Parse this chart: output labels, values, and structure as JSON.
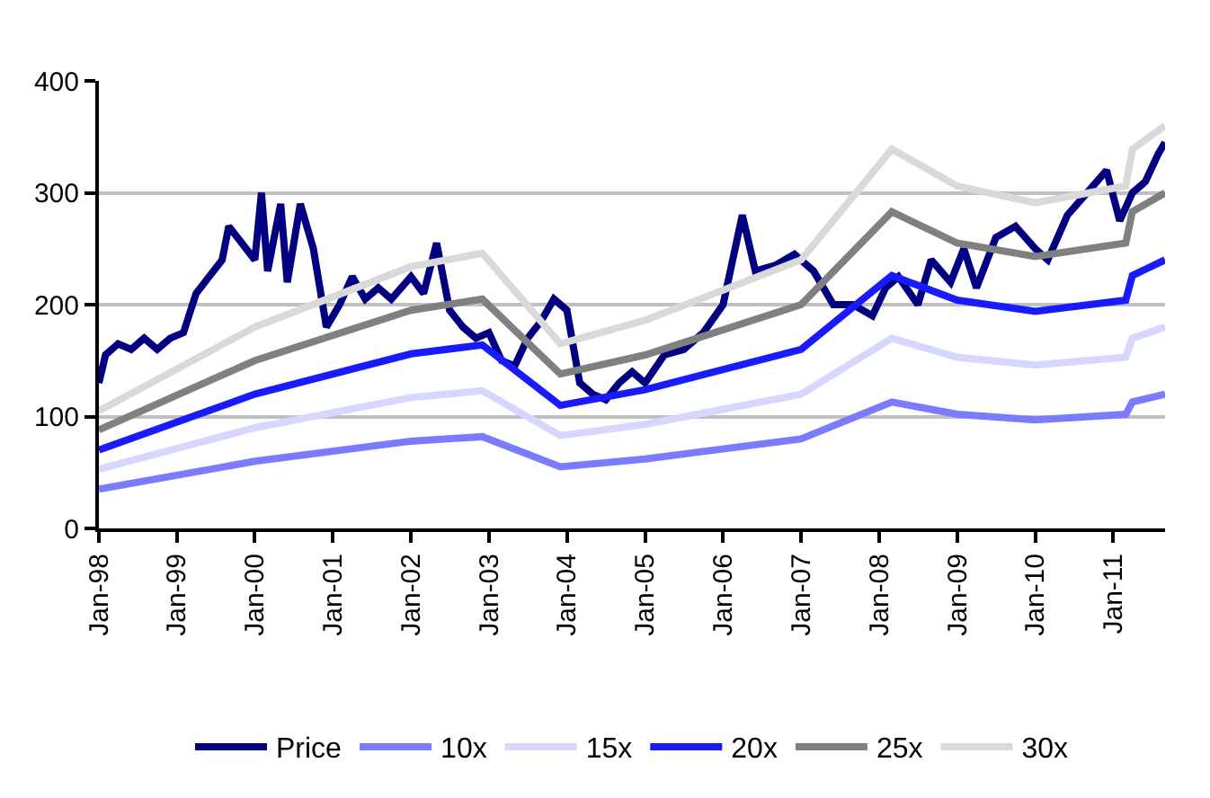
{
  "chart_data": {
    "type": "line",
    "grid": "y",
    "legend": "bottom",
    "marker": "none",
    "line_style": "solid",
    "ylim": [
      0,
      400
    ],
    "yticks": [
      0,
      100,
      200,
      300,
      400
    ],
    "xlim": [
      "1998-01",
      "2011-09"
    ],
    "xticks": [
      {
        "value": "1998-01",
        "label": "Jan-98"
      },
      {
        "value": "1999-01",
        "label": "Jan-99"
      },
      {
        "value": "2000-01",
        "label": "Jan-00"
      },
      {
        "value": "2001-01",
        "label": "Jan-01"
      },
      {
        "value": "2002-01",
        "label": "Jan-02"
      },
      {
        "value": "2003-01",
        "label": "Jan-03"
      },
      {
        "value": "2004-01",
        "label": "Jan-04"
      },
      {
        "value": "2005-01",
        "label": "Jan-05"
      },
      {
        "value": "2006-01",
        "label": "Jan-06"
      },
      {
        "value": "2007-01",
        "label": "Jan-07"
      },
      {
        "value": "2008-01",
        "label": "Jan-08"
      },
      {
        "value": "2009-01",
        "label": "Jan-09"
      },
      {
        "value": "2010-01",
        "label": "Jan-10"
      },
      {
        "value": "2011-01",
        "label": "Jan-11"
      }
    ],
    "x": [
      "1998-01",
      "2000-01",
      "2002-01",
      "2002-12",
      "2003-12",
      "2005-01",
      "2007-01",
      "2008-03",
      "2009-01",
      "2010-01",
      "2011-03",
      "2011-04",
      "2011-09"
    ],
    "series": [
      {
        "name": "Price",
        "color": "#000080",
        "x": [
          "1998-01",
          "1998-02",
          "1998-04",
          "1998-06",
          "1998-08",
          "1998-10",
          "1998-12",
          "1999-02",
          "1999-04",
          "1999-06",
          "1999-08",
          "1999-09",
          "1999-11",
          "2000-01",
          "2000-02",
          "2000-03",
          "2000-05",
          "2000-06",
          "2000-08",
          "2000-10",
          "2000-12",
          "2001-02",
          "2001-04",
          "2001-06",
          "2001-08",
          "2001-10",
          "2002-01",
          "2002-03",
          "2002-05",
          "2002-07",
          "2002-09",
          "2002-11",
          "2003-01",
          "2003-03",
          "2003-05",
          "2003-07",
          "2003-09",
          "2003-11",
          "2004-01",
          "2004-03",
          "2004-05",
          "2004-07",
          "2004-09",
          "2004-11",
          "2005-01",
          "2005-04",
          "2005-07",
          "2005-10",
          "2006-01",
          "2006-04",
          "2006-06",
          "2006-09",
          "2006-12",
          "2007-03",
          "2007-06",
          "2007-09",
          "2007-12",
          "2008-02",
          "2008-04",
          "2008-07",
          "2008-09",
          "2008-12",
          "2009-02",
          "2009-04",
          "2009-07",
          "2009-10",
          "2010-01",
          "2010-03",
          "2010-06",
          "2010-09",
          "2010-12",
          "2011-02",
          "2011-04",
          "2011-06",
          "2011-08",
          "2011-09"
        ],
        "values": [
          130,
          155,
          165,
          160,
          170,
          160,
          170,
          175,
          210,
          225,
          240,
          270,
          255,
          240,
          300,
          230,
          290,
          220,
          290,
          250,
          180,
          200,
          225,
          205,
          215,
          205,
          225,
          210,
          255,
          195,
          180,
          170,
          175,
          150,
          145,
          170,
          185,
          205,
          195,
          130,
          120,
          115,
          130,
          140,
          130,
          155,
          160,
          175,
          200,
          280,
          230,
          235,
          245,
          230,
          200,
          200,
          190,
          215,
          225,
          200,
          240,
          220,
          250,
          215,
          260,
          270,
          250,
          240,
          280,
          300,
          320,
          275,
          300,
          310,
          335,
          345
        ]
      },
      {
        "name": "10x",
        "color": "#7b7bff",
        "values": [
          35,
          60,
          78,
          82,
          55,
          62,
          80,
          113,
          102,
          97,
          102,
          113,
          120
        ]
      },
      {
        "name": "15x",
        "color": "#d6d6ff",
        "values": [
          53,
          90,
          117,
          123,
          83,
          93,
          120,
          170,
          153,
          146,
          153,
          170,
          180
        ]
      },
      {
        "name": "20x",
        "color": "#1a1aff",
        "values": [
          70,
          120,
          156,
          164,
          110,
          124,
          160,
          226,
          204,
          194,
          204,
          226,
          240
        ]
      },
      {
        "name": "25x",
        "color": "#808080",
        "values": [
          88,
          150,
          195,
          205,
          138,
          155,
          200,
          283,
          255,
          243,
          255,
          283,
          300
        ]
      },
      {
        "name": "30x",
        "color": "#d9d9d9",
        "values": [
          105,
          180,
          234,
          246,
          165,
          186,
          240,
          339,
          306,
          291,
          306,
          339,
          360
        ]
      }
    ]
  }
}
